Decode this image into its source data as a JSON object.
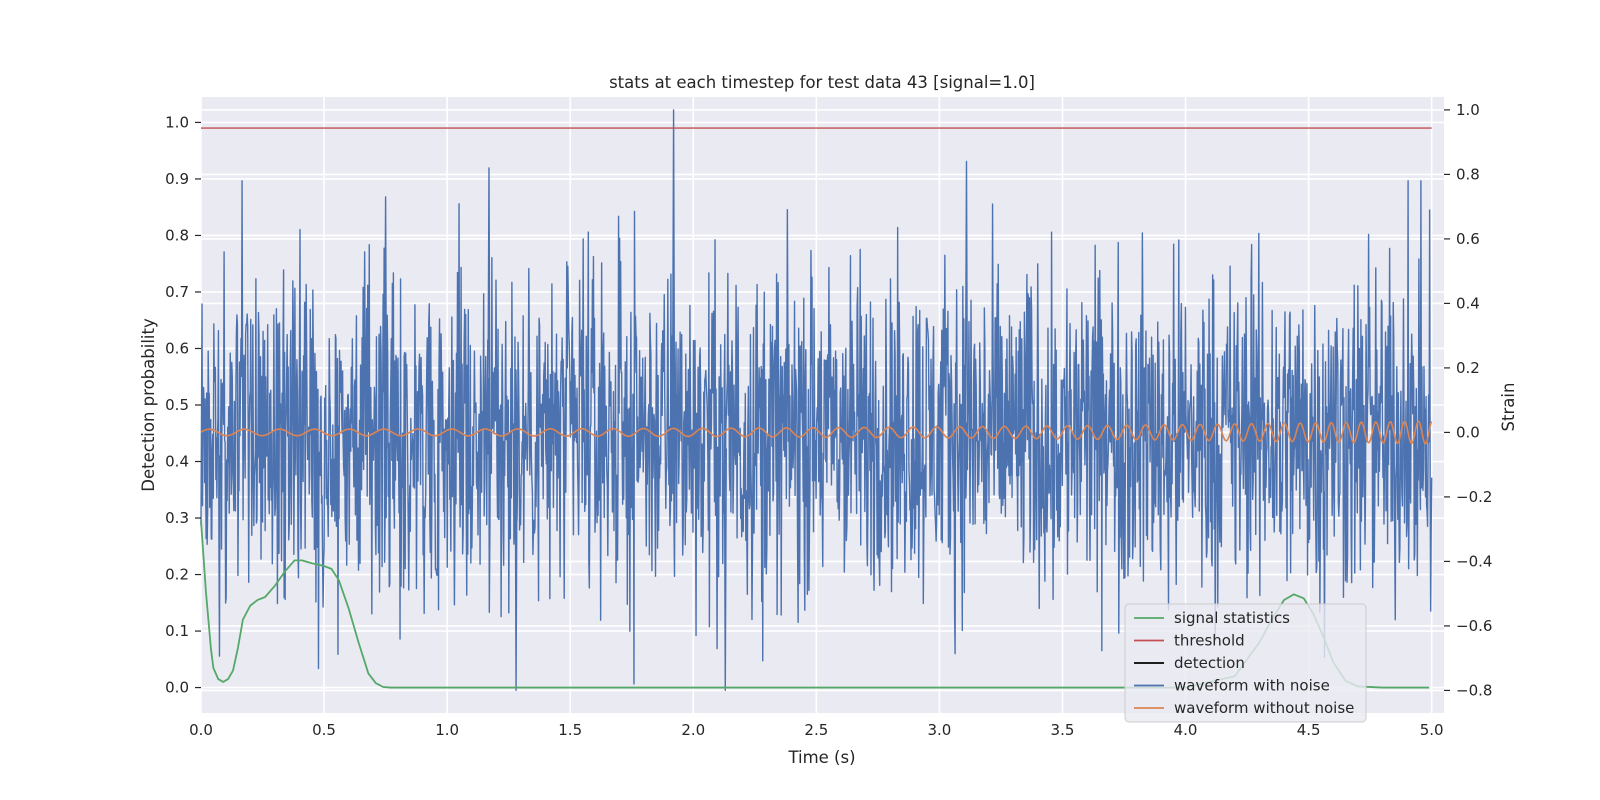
{
  "chart_data": {
    "type": "line",
    "title": "stats at each timestep for test data 43 [signal=1.0]",
    "xlabel": "Time (s)",
    "ylabel": "Detection probability",
    "y2label": "Strain",
    "xlim": [
      0.0,
      5.05
    ],
    "ylim": [
      -0.045,
      1.045
    ],
    "y2lim": [
      -0.87,
      1.04
    ],
    "grid": true,
    "legend_position": "lower-right",
    "x_ticks": [
      "0.0",
      "0.5",
      "1.0",
      "1.5",
      "2.0",
      "2.5",
      "3.0",
      "3.5",
      "4.0",
      "4.5",
      "5.0"
    ],
    "y_ticks": [
      "0.0",
      "0.1",
      "0.2",
      "0.3",
      "0.4",
      "0.5",
      "0.6",
      "0.7",
      "0.8",
      "0.9",
      "1.0"
    ],
    "y2_ticks": [
      "−0.8",
      "−0.6",
      "−0.4",
      "−0.2",
      "0.0",
      "0.2",
      "0.4",
      "0.6",
      "0.8",
      "1.0"
    ],
    "series": [
      {
        "name": "signal statistics",
        "axis": "left",
        "color": "#55a868",
        "x": [
          0.0,
          0.02,
          0.04,
          0.05,
          0.07,
          0.09,
          0.11,
          0.13,
          0.15,
          0.17,
          0.2,
          0.23,
          0.26,
          0.3,
          0.34,
          0.38,
          0.41,
          0.45,
          0.5,
          0.53,
          0.56,
          0.6,
          0.64,
          0.68,
          0.71,
          0.74,
          0.77,
          0.8,
          1.0,
          1.5,
          2.0,
          2.5,
          3.0,
          3.5,
          4.0,
          4.2,
          4.3,
          4.35,
          4.4,
          4.44,
          4.48,
          4.52,
          4.56,
          4.6,
          4.65,
          4.7,
          4.8,
          4.99
        ],
        "y": [
          0.295,
          0.17,
          0.07,
          0.035,
          0.015,
          0.01,
          0.015,
          0.03,
          0.07,
          0.12,
          0.145,
          0.155,
          0.16,
          0.18,
          0.205,
          0.225,
          0.225,
          0.22,
          0.215,
          0.21,
          0.19,
          0.14,
          0.08,
          0.025,
          0.008,
          0.001,
          0.0,
          0.0,
          0.0,
          0.0,
          0.0,
          0.0,
          0.0,
          0.0,
          0.0,
          0.02,
          0.08,
          0.12,
          0.155,
          0.165,
          0.158,
          0.13,
          0.09,
          0.045,
          0.012,
          0.002,
          0.0,
          0.0
        ]
      },
      {
        "name": "threshold",
        "axis": "left",
        "color": "#c44e52",
        "x": [
          0.0,
          5.0
        ],
        "y": [
          0.99,
          0.99
        ]
      },
      {
        "name": "detection",
        "axis": "left",
        "color": "#000000",
        "x": [],
        "y": []
      },
      {
        "name": "waveform with noise",
        "axis": "right",
        "color": "#4c72b0",
        "description_of_values": "noisy strain, roughly within -0.5 to 0.5 with spikes",
        "x_range": [
          0.0,
          5.0
        ],
        "typical_range": [
          -0.45,
          0.45
        ],
        "peaks": [
          {
            "x": 1.92,
            "y": 1.0
          },
          {
            "x": 3.11,
            "y": 0.84
          },
          {
            "x": 1.17,
            "y": 0.82
          },
          {
            "x": 0.75,
            "y": 0.73
          },
          {
            "x": 1.28,
            "y": -0.8
          },
          {
            "x": 2.13,
            "y": -0.8
          }
        ]
      },
      {
        "name": "waveform without noise",
        "axis": "right",
        "color": "#dd8452",
        "description_of_values": "chirp with increasing frequency and amplitude",
        "x_range": [
          0.0,
          5.0
        ],
        "amplitude_start": 0.01,
        "amplitude_end": 0.035
      }
    ]
  }
}
